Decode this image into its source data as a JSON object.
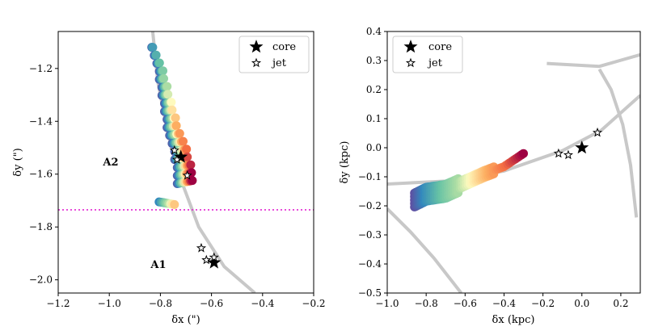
{
  "chart_data": [
    {
      "type": "scatter",
      "panel": "left",
      "xlabel": "δx (\")",
      "ylabel": "δy (\")",
      "xlim": [
        -1.2,
        -0.2
      ],
      "ylim": [
        -2.05,
        -1.06
      ],
      "xticks": [
        -1.2,
        -1.0,
        -0.8,
        -0.6,
        -0.4,
        -0.2
      ],
      "xtick_labels": [
        "−1.2",
        "−1.0",
        "−0.8",
        "−0.6",
        "−0.4",
        "−0.2"
      ],
      "yticks": [
        -2.0,
        -1.8,
        -1.6,
        -1.4,
        -1.2
      ],
      "ytick_labels": [
        "−2.0",
        "−1.8",
        "−1.6",
        "−1.4",
        "−1.2"
      ],
      "legend": {
        "position": "top-right",
        "entries": [
          "core",
          "jet"
        ]
      },
      "annotations": [
        {
          "text": "A2",
          "x": -0.99,
          "y": -1.55
        },
        {
          "text": "A1",
          "x": -0.83,
          "y": -1.94
        }
      ],
      "cutoff_line": {
        "y": -1.735,
        "color": "#e424d2",
        "style": "dotted"
      },
      "critical_curve": {
        "color": "#c8c8c8",
        "points": [
          [
            -0.83,
            -1.06
          ],
          [
            -0.81,
            -1.25
          ],
          [
            -0.77,
            -1.45
          ],
          [
            -0.72,
            -1.62
          ],
          [
            -0.65,
            -1.8
          ],
          [
            -0.55,
            -1.95
          ],
          [
            -0.43,
            -2.05
          ]
        ]
      },
      "series": [
        {
          "name": "core",
          "marker": "filled-star",
          "points": [
            [
              -0.72,
              -1.535
            ],
            [
              -0.59,
              -1.935
            ]
          ]
        },
        {
          "name": "jet",
          "marker": "open-star",
          "points": [
            [
              -0.745,
              -1.51
            ],
            [
              -0.735,
              -1.545
            ],
            [
              -0.695,
              -1.605
            ],
            [
              -0.64,
              -1.88
            ],
            [
              -0.62,
              -1.925
            ],
            [
              -0.59,
              -1.915
            ]
          ]
        },
        {
          "name": "source-plane-extended",
          "color_scale": "Spectral",
          "points": [
            [
              -0.83,
              -1.12
            ],
            [
              -0.82,
              -1.15
            ],
            [
              -0.81,
              -1.18
            ],
            [
              -0.8,
              -1.21
            ],
            [
              -0.8,
              -1.24
            ],
            [
              -0.79,
              -1.27
            ],
            [
              -0.79,
              -1.3
            ],
            [
              -0.78,
              -1.33
            ],
            [
              -0.78,
              -1.36
            ],
            [
              -0.77,
              -1.39
            ],
            [
              -0.77,
              -1.42
            ],
            [
              -0.76,
              -1.45
            ],
            [
              -0.75,
              -1.48
            ],
            [
              -0.74,
              -1.51
            ],
            [
              -0.74,
              -1.54
            ],
            [
              -0.73,
              -1.57
            ],
            [
              -0.73,
              -1.6
            ],
            [
              -0.73,
              -1.63
            ]
          ]
        }
      ]
    },
    {
      "type": "scatter",
      "panel": "right",
      "xlabel": "δx (kpc)",
      "ylabel": "δy (kpc)",
      "xlim": [
        -1.0,
        0.3
      ],
      "ylim": [
        -0.5,
        0.4
      ],
      "xticks": [
        -1.0,
        -0.8,
        -0.6,
        -0.4,
        -0.2,
        0.0,
        0.2
      ],
      "xtick_labels": [
        "−1.0",
        "−0.8",
        "−0.6",
        "−0.4",
        "−0.2",
        "0.0",
        "0.2"
      ],
      "yticks": [
        -0.5,
        -0.4,
        -0.3,
        -0.2,
        -0.1,
        0.0,
        0.1,
        0.2,
        0.3,
        0.4
      ],
      "ytick_labels": [
        "−0.5",
        "−0.4",
        "−0.3",
        "−0.2",
        "−0.1",
        "0.0",
        "0.1",
        "0.2",
        "0.3",
        "0.4"
      ],
      "legend": {
        "position": "top-left",
        "entries": [
          "core",
          "jet"
        ]
      },
      "caustic_curves": [
        {
          "color": "#c8c8c8",
          "points": [
            [
              -1.0,
              -0.125
            ],
            [
              -0.7,
              -0.115
            ],
            [
              -0.4,
              -0.08
            ],
            [
              -0.1,
              -0.01
            ],
            [
              0.1,
              0.06
            ],
            [
              0.3,
              0.18
            ]
          ]
        },
        {
          "color": "#c8c8c8",
          "points": [
            [
              -1.0,
              -0.21
            ],
            [
              -0.88,
              -0.29
            ],
            [
              -0.76,
              -0.38
            ],
            [
              -0.62,
              -0.5
            ]
          ]
        },
        {
          "color": "#c8c8c8",
          "points": [
            [
              0.28,
              -0.24
            ],
            [
              0.25,
              -0.06
            ],
            [
              0.21,
              0.08
            ],
            [
              0.15,
              0.2
            ],
            [
              0.09,
              0.27
            ]
          ]
        },
        {
          "color": "#c8c8c8",
          "points": [
            [
              -0.18,
              0.29
            ],
            [
              0.09,
              0.28
            ],
            [
              0.3,
              0.32
            ]
          ]
        }
      ],
      "series": [
        {
          "name": "core",
          "marker": "filled-star",
          "points": [
            [
              0.0,
              0.0
            ]
          ]
        },
        {
          "name": "jet",
          "marker": "open-star",
          "points": [
            [
              -0.12,
              -0.02
            ],
            [
              -0.07,
              -0.025
            ],
            [
              0.08,
              0.052
            ]
          ]
        },
        {
          "name": "source-plane-extended",
          "color_scale": "Spectral",
          "points": [
            [
              -0.86,
              -0.18
            ],
            [
              -0.8,
              -0.16
            ],
            [
              -0.7,
              -0.15
            ],
            [
              -0.6,
              -0.12
            ],
            [
              -0.5,
              -0.09
            ],
            [
              -0.4,
              -0.065
            ],
            [
              -0.3,
              -0.02
            ]
          ]
        }
      ]
    }
  ]
}
